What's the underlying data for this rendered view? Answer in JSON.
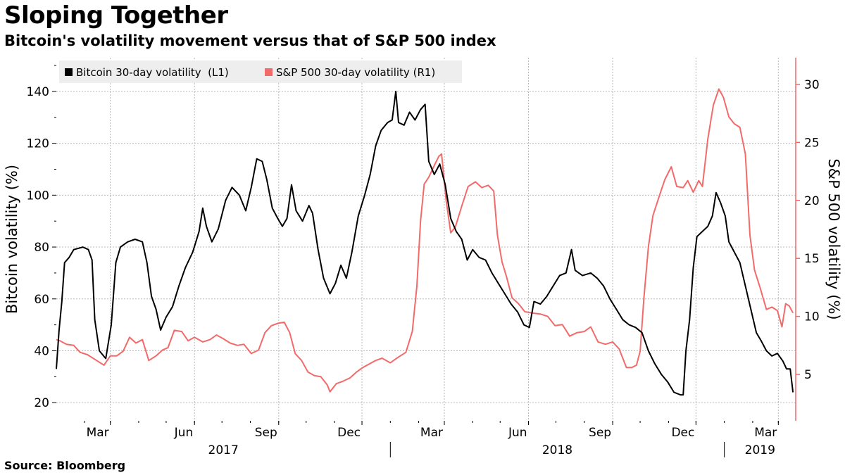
{
  "title": "Sloping Together",
  "subtitle": "Bitcoin's volatility movement versus that of S&P 500 index",
  "source": "Source: Bloomberg",
  "colors": {
    "bitcoin": "#000000",
    "sp500": "#f26a6a",
    "grid": "#b8b8b8",
    "legend_bg": "#eeeeee"
  },
  "chart_data": {
    "type": "line",
    "title": "Sloping Together",
    "subtitle": "Bitcoin's volatility movement versus that of S&P 500 index",
    "grid": true,
    "legend_position": "top-left",
    "x_range": [
      "2017-01-01",
      "2019-03-20"
    ],
    "x_month_ticks": [
      "Mar",
      "Jun",
      "Sep",
      "Dec",
      "Mar",
      "Jun",
      "Sep",
      "Dec",
      "Mar"
    ],
    "x_year_labels": [
      "2017",
      "2018",
      "2019"
    ],
    "y_left": {
      "label": "Bitcoin volatility (%)",
      "min": 13,
      "max": 153,
      "ticks": [
        20,
        40,
        60,
        80,
        100,
        120,
        140
      ]
    },
    "y_right": {
      "label": "S&P 500 volatility (%)",
      "min": 1,
      "max": 32.3,
      "ticks": [
        5,
        10,
        15,
        20,
        25,
        30
      ]
    },
    "series": [
      {
        "name": "Bitcoin 30-day volatility  (L1)",
        "axis": "left",
        "points": [
          [
            "2017-01-01",
            33
          ],
          [
            "2017-01-04",
            48
          ],
          [
            "2017-01-07",
            59
          ],
          [
            "2017-01-10",
            74
          ],
          [
            "2017-01-15",
            76
          ],
          [
            "2017-01-20",
            79
          ],
          [
            "2017-01-30",
            80
          ],
          [
            "2017-02-05",
            79
          ],
          [
            "2017-02-09",
            75
          ],
          [
            "2017-02-12",
            52
          ],
          [
            "2017-02-17",
            40
          ],
          [
            "2017-02-24",
            37
          ],
          [
            "2017-03-02",
            50
          ],
          [
            "2017-03-07",
            74
          ],
          [
            "2017-03-12",
            80
          ],
          [
            "2017-03-20",
            82
          ],
          [
            "2017-03-28",
            83
          ],
          [
            "2017-04-05",
            82
          ],
          [
            "2017-04-10",
            74
          ],
          [
            "2017-04-15",
            61
          ],
          [
            "2017-04-20",
            56
          ],
          [
            "2017-04-25",
            48
          ],
          [
            "2017-05-01",
            53
          ],
          [
            "2017-05-08",
            57
          ],
          [
            "2017-05-15",
            65
          ],
          [
            "2017-05-22",
            72
          ],
          [
            "2017-05-30",
            78
          ],
          [
            "2017-06-06",
            86
          ],
          [
            "2017-06-10",
            95
          ],
          [
            "2017-06-14",
            88
          ],
          [
            "2017-06-20",
            82
          ],
          [
            "2017-06-27",
            87
          ],
          [
            "2017-07-05",
            98
          ],
          [
            "2017-07-12",
            103
          ],
          [
            "2017-07-20",
            100
          ],
          [
            "2017-07-27",
            94
          ],
          [
            "2017-08-02",
            103
          ],
          [
            "2017-08-08",
            114
          ],
          [
            "2017-08-14",
            113
          ],
          [
            "2017-08-19",
            106
          ],
          [
            "2017-08-25",
            95
          ],
          [
            "2017-08-31",
            91
          ],
          [
            "2017-09-05",
            88
          ],
          [
            "2017-09-10",
            91
          ],
          [
            "2017-09-15",
            104
          ],
          [
            "2017-09-20",
            94
          ],
          [
            "2017-09-27",
            90
          ],
          [
            "2017-10-04",
            96
          ],
          [
            "2017-10-08",
            93
          ],
          [
            "2017-10-14",
            79
          ],
          [
            "2017-10-20",
            68
          ],
          [
            "2017-10-27",
            62
          ],
          [
            "2017-11-02",
            66
          ],
          [
            "2017-11-08",
            73
          ],
          [
            "2017-11-14",
            68
          ],
          [
            "2017-11-20",
            78
          ],
          [
            "2017-11-27",
            92
          ],
          [
            "2017-12-04",
            100
          ],
          [
            "2017-12-10",
            108
          ],
          [
            "2017-12-16",
            119
          ],
          [
            "2017-12-22",
            125
          ],
          [
            "2017-12-29",
            128
          ],
          [
            "2018-01-03",
            129
          ],
          [
            "2018-01-07",
            140
          ],
          [
            "2018-01-10",
            128
          ],
          [
            "2018-01-16",
            127
          ],
          [
            "2018-01-22",
            132
          ],
          [
            "2018-01-28",
            129
          ],
          [
            "2018-02-03",
            133
          ],
          [
            "2018-02-08",
            135
          ],
          [
            "2018-02-12",
            113
          ],
          [
            "2018-02-18",
            108
          ],
          [
            "2018-02-24",
            112
          ],
          [
            "2018-03-02",
            104
          ],
          [
            "2018-03-08",
            91
          ],
          [
            "2018-03-14",
            86
          ],
          [
            "2018-03-20",
            83
          ],
          [
            "2018-03-26",
            75
          ],
          [
            "2018-04-01",
            79
          ],
          [
            "2018-04-08",
            76
          ],
          [
            "2018-04-15",
            75
          ],
          [
            "2018-04-22",
            70
          ],
          [
            "2018-04-29",
            66
          ],
          [
            "2018-05-06",
            62
          ],
          [
            "2018-05-13",
            58
          ],
          [
            "2018-05-20",
            55
          ],
          [
            "2018-05-27",
            50
          ],
          [
            "2018-06-02",
            49
          ],
          [
            "2018-06-07",
            59
          ],
          [
            "2018-06-14",
            58
          ],
          [
            "2018-06-21",
            61
          ],
          [
            "2018-06-28",
            65
          ],
          [
            "2018-07-05",
            69
          ],
          [
            "2018-07-12",
            70
          ],
          [
            "2018-07-18",
            79
          ],
          [
            "2018-07-22",
            71
          ],
          [
            "2018-07-30",
            69
          ],
          [
            "2018-08-08",
            70
          ],
          [
            "2018-08-15",
            68
          ],
          [
            "2018-08-22",
            65
          ],
          [
            "2018-08-29",
            60
          ],
          [
            "2018-09-05",
            56
          ],
          [
            "2018-09-12",
            52
          ],
          [
            "2018-09-19",
            50
          ],
          [
            "2018-09-26",
            49
          ],
          [
            "2018-10-03",
            47
          ],
          [
            "2018-10-10",
            40
          ],
          [
            "2018-10-17",
            35
          ],
          [
            "2018-10-24",
            31
          ],
          [
            "2018-10-31",
            28
          ],
          [
            "2018-11-07",
            24
          ],
          [
            "2018-11-14",
            23
          ],
          [
            "2018-11-17",
            23
          ],
          [
            "2018-11-20",
            40
          ],
          [
            "2018-11-24",
            52
          ],
          [
            "2018-11-28",
            72
          ],
          [
            "2018-12-02",
            84
          ],
          [
            "2018-12-08",
            86
          ],
          [
            "2018-12-14",
            88
          ],
          [
            "2018-12-19",
            92
          ],
          [
            "2018-12-23",
            101
          ],
          [
            "2018-12-28",
            97
          ],
          [
            "2019-01-02",
            92
          ],
          [
            "2019-01-06",
            82
          ],
          [
            "2019-01-12",
            78
          ],
          [
            "2019-01-18",
            74
          ],
          [
            "2019-01-24",
            65
          ],
          [
            "2019-01-30",
            56
          ],
          [
            "2019-02-05",
            47
          ],
          [
            "2019-02-10",
            44
          ],
          [
            "2019-02-16",
            40
          ],
          [
            "2019-02-22",
            38
          ],
          [
            "2019-02-28",
            39
          ],
          [
            "2019-03-06",
            36
          ],
          [
            "2019-03-10",
            33
          ],
          [
            "2019-03-14",
            33
          ],
          [
            "2019-03-17",
            24
          ]
        ]
      },
      {
        "name": "S&P 500 30-day volatility (R1)",
        "axis": "right",
        "points": [
          [
            "2017-01-01",
            8
          ],
          [
            "2017-01-05",
            7.9
          ],
          [
            "2017-01-12",
            7.6
          ],
          [
            "2017-01-20",
            7.5
          ],
          [
            "2017-01-27",
            6.9
          ],
          [
            "2017-02-04",
            6.7
          ],
          [
            "2017-02-14",
            6.2
          ],
          [
            "2017-02-22",
            5.8
          ],
          [
            "2017-03-01",
            6.6
          ],
          [
            "2017-03-08",
            6.6
          ],
          [
            "2017-03-15",
            7.0
          ],
          [
            "2017-03-22",
            8.2
          ],
          [
            "2017-03-29",
            7.7
          ],
          [
            "2017-04-05",
            8.0
          ],
          [
            "2017-04-12",
            6.2
          ],
          [
            "2017-04-20",
            6.6
          ],
          [
            "2017-04-27",
            7.1
          ],
          [
            "2017-05-03",
            7.3
          ],
          [
            "2017-05-10",
            8.8
          ],
          [
            "2017-05-18",
            8.7
          ],
          [
            "2017-05-25",
            7.9
          ],
          [
            "2017-06-01",
            8.2
          ],
          [
            "2017-06-10",
            7.8
          ],
          [
            "2017-06-18",
            8.0
          ],
          [
            "2017-06-25",
            8.4
          ],
          [
            "2017-07-02",
            8.1
          ],
          [
            "2017-07-10",
            7.7
          ],
          [
            "2017-07-18",
            7.5
          ],
          [
            "2017-07-25",
            7.6
          ],
          [
            "2017-08-02",
            6.8
          ],
          [
            "2017-08-10",
            7.1
          ],
          [
            "2017-08-17",
            8.6
          ],
          [
            "2017-08-24",
            9.2
          ],
          [
            "2017-08-31",
            9.4
          ],
          [
            "2017-09-07",
            9.5
          ],
          [
            "2017-09-13",
            8.6
          ],
          [
            "2017-09-19",
            6.8
          ],
          [
            "2017-09-26",
            6.2
          ],
          [
            "2017-10-03",
            5.2
          ],
          [
            "2017-10-10",
            4.9
          ],
          [
            "2017-10-17",
            4.8
          ],
          [
            "2017-10-24",
            4.1
          ],
          [
            "2017-10-27",
            3.5
          ],
          [
            "2017-11-03",
            4.2
          ],
          [
            "2017-11-10",
            4.4
          ],
          [
            "2017-11-18",
            4.7
          ],
          [
            "2017-11-25",
            5.2
          ],
          [
            "2017-12-02",
            5.6
          ],
          [
            "2017-12-09",
            5.9
          ],
          [
            "2017-12-16",
            6.2
          ],
          [
            "2017-12-23",
            6.4
          ],
          [
            "2018-01-01",
            6.0
          ],
          [
            "2018-01-10",
            6.5
          ],
          [
            "2018-01-18",
            6.9
          ],
          [
            "2018-01-25",
            8.7
          ],
          [
            "2018-01-30",
            12.6
          ],
          [
            "2018-02-03",
            18.2
          ],
          [
            "2018-02-07",
            21.4
          ],
          [
            "2018-02-12",
            22.0
          ],
          [
            "2018-02-18",
            23.0
          ],
          [
            "2018-02-23",
            23.8
          ],
          [
            "2018-02-26",
            24.0
          ],
          [
            "2018-03-03",
            20.0
          ],
          [
            "2018-03-08",
            17.2
          ],
          [
            "2018-03-13",
            17.7
          ],
          [
            "2018-03-20",
            19.5
          ],
          [
            "2018-03-27",
            21.2
          ],
          [
            "2018-04-04",
            21.6
          ],
          [
            "2018-04-11",
            21.1
          ],
          [
            "2018-04-18",
            21.3
          ],
          [
            "2018-04-24",
            20.8
          ],
          [
            "2018-04-28",
            17.0
          ],
          [
            "2018-05-03",
            14.7
          ],
          [
            "2018-05-08",
            13.4
          ],
          [
            "2018-05-14",
            11.6
          ],
          [
            "2018-05-21",
            11.1
          ],
          [
            "2018-05-28",
            10.4
          ],
          [
            "2018-06-05",
            10.3
          ],
          [
            "2018-06-14",
            10.2
          ],
          [
            "2018-06-22",
            10.0
          ],
          [
            "2018-06-30",
            9.2
          ],
          [
            "2018-07-08",
            9.3
          ],
          [
            "2018-07-16",
            8.3
          ],
          [
            "2018-07-24",
            8.6
          ],
          [
            "2018-08-01",
            8.7
          ],
          [
            "2018-08-08",
            9.1
          ],
          [
            "2018-08-16",
            7.8
          ],
          [
            "2018-08-24",
            7.6
          ],
          [
            "2018-09-01",
            7.8
          ],
          [
            "2018-09-08",
            7.2
          ],
          [
            "2018-09-16",
            5.6
          ],
          [
            "2018-09-22",
            5.6
          ],
          [
            "2018-09-27",
            5.8
          ],
          [
            "2018-10-01",
            7.0
          ],
          [
            "2018-10-05",
            11.5
          ],
          [
            "2018-10-10",
            16.0
          ],
          [
            "2018-10-15",
            18.7
          ],
          [
            "2018-10-22",
            20.4
          ],
          [
            "2018-10-28",
            21.8
          ],
          [
            "2018-11-04",
            22.9
          ],
          [
            "2018-11-10",
            21.2
          ],
          [
            "2018-11-17",
            21.1
          ],
          [
            "2018-11-22",
            21.7
          ],
          [
            "2018-11-28",
            20.7
          ],
          [
            "2018-12-04",
            21.7
          ],
          [
            "2018-12-08",
            21.2
          ],
          [
            "2018-12-14",
            25.3
          ],
          [
            "2018-12-20",
            28.2
          ],
          [
            "2018-12-26",
            29.6
          ],
          [
            "2018-12-31",
            28.9
          ],
          [
            "2019-01-06",
            27.2
          ],
          [
            "2019-01-12",
            26.6
          ],
          [
            "2019-01-18",
            26.3
          ],
          [
            "2019-01-24",
            24.0
          ],
          [
            "2019-01-29",
            17.0
          ],
          [
            "2019-02-03",
            14.0
          ],
          [
            "2019-02-09",
            12.5
          ],
          [
            "2019-02-16",
            10.6
          ],
          [
            "2019-02-22",
            10.8
          ],
          [
            "2019-02-28",
            10.5
          ],
          [
            "2019-03-05",
            9.1
          ],
          [
            "2019-03-09",
            11.1
          ],
          [
            "2019-03-13",
            10.9
          ],
          [
            "2019-03-17",
            10.3
          ]
        ]
      }
    ]
  }
}
